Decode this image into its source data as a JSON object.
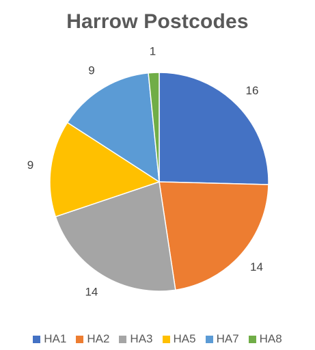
{
  "chart_data": {
    "type": "pie",
    "title": "Harrow Postcodes",
    "legend_position": "bottom",
    "slices": [
      {
        "name": "HA1",
        "value": 16,
        "color": "#4472C4"
      },
      {
        "name": "HA2",
        "value": 14,
        "color": "#ED7D31"
      },
      {
        "name": "HA3",
        "value": 14,
        "color": "#A5A5A5"
      },
      {
        "name": "HA5",
        "value": 9,
        "color": "#FFC000"
      },
      {
        "name": "HA7",
        "value": 9,
        "color": "#5B9BD5"
      },
      {
        "name": "HA8",
        "value": 1,
        "color": "#70AD47"
      }
    ]
  }
}
